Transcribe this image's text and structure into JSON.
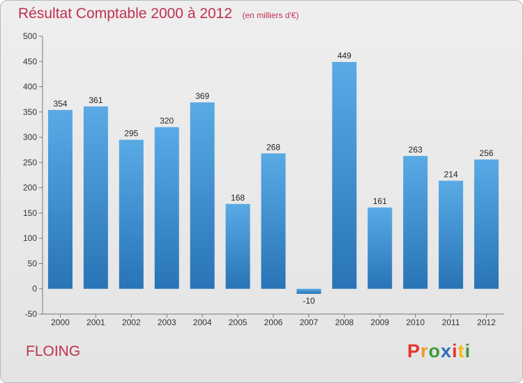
{
  "header": {
    "title": "Résultat Comptable 2000 à 2012",
    "unit": "(en milliers d'€)"
  },
  "footer": {
    "place": "FLOING",
    "brand": "Proxiti"
  },
  "colors": {
    "title": "#c0304f",
    "bar_top": "#5aaae6",
    "bar_bottom": "#2874b6",
    "logo_letters": [
      "#e5352b",
      "#f39a1e",
      "#3d9a3a",
      "#2f6fb8",
      "#e5352b",
      "#f5b919",
      "#3d9a3a"
    ]
  },
  "chart_data": {
    "type": "bar",
    "title": "Résultat Comptable 2000 à 2012",
    "ylabel": "",
    "xlabel": "",
    "categories": [
      "2000",
      "2001",
      "2002",
      "2003",
      "2004",
      "2005",
      "2006",
      "2007",
      "2008",
      "2009",
      "2010",
      "2011",
      "2012"
    ],
    "values": [
      354,
      361,
      295,
      320,
      369,
      168,
      268,
      -10,
      449,
      161,
      263,
      214,
      256
    ],
    "ylim": [
      -50,
      500
    ],
    "yticks": [
      -50,
      0,
      50,
      100,
      150,
      200,
      250,
      300,
      350,
      400,
      450,
      500
    ],
    "grid": false,
    "data_labels": true
  }
}
